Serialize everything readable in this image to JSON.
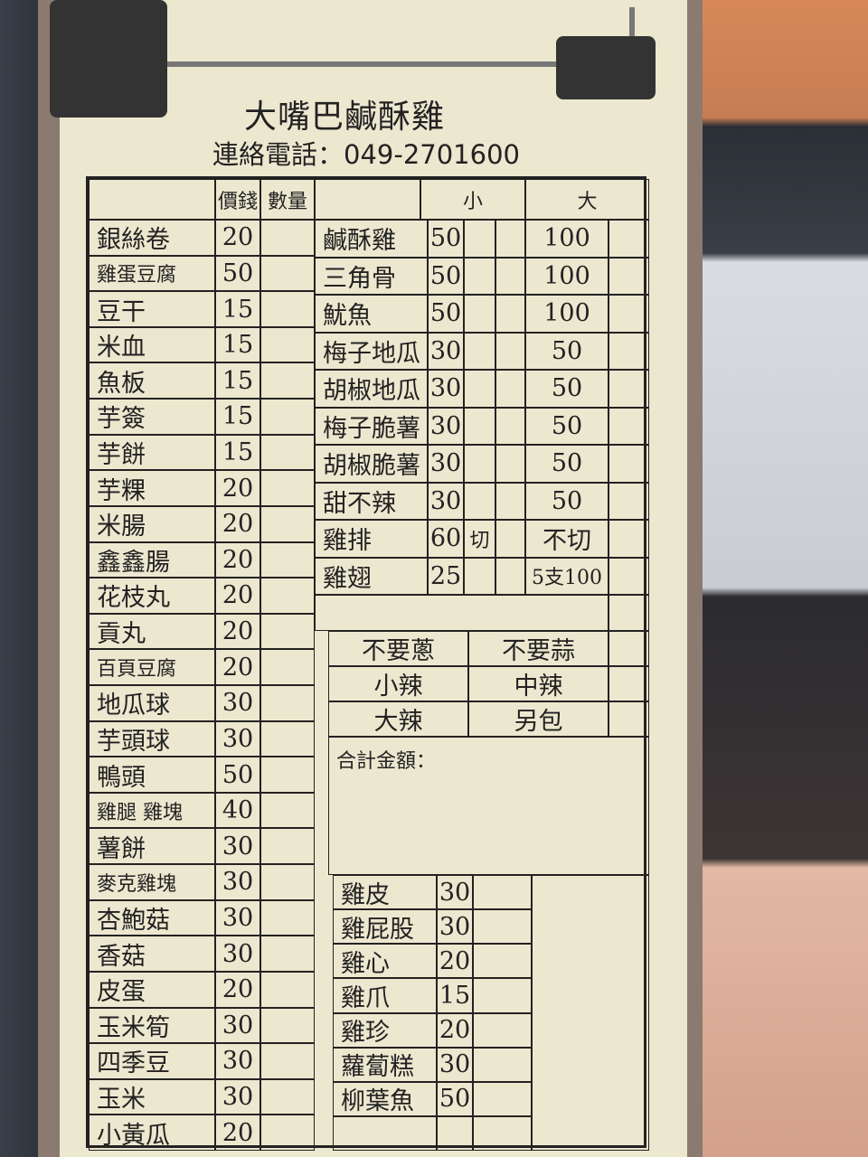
{
  "header": {
    "title": "大嘴巴鹹酥雞",
    "phone": "連絡電話：049-2701600"
  },
  "left_headers": {
    "price": "價錢",
    "qty": "數量"
  },
  "right_headers": {
    "small": "小",
    "large": "大"
  },
  "left_items": [
    {
      "name": "銀絲卷",
      "price": "20"
    },
    {
      "name": "雞蛋豆腐",
      "price": "50"
    },
    {
      "name": "豆干",
      "price": "15"
    },
    {
      "name": "米血",
      "price": "15"
    },
    {
      "name": "魚板",
      "price": "15"
    },
    {
      "name": "芋簽",
      "price": "15"
    },
    {
      "name": "芋餅",
      "price": "15"
    },
    {
      "name": "芋粿",
      "price": "20"
    },
    {
      "name": "米腸",
      "price": "20"
    },
    {
      "name": "鑫鑫腸",
      "price": "20"
    },
    {
      "name": "花枝丸",
      "price": "20"
    },
    {
      "name": "貢丸",
      "price": "20"
    },
    {
      "name": "百頁豆腐",
      "price": "20"
    },
    {
      "name": "地瓜球",
      "price": "30"
    },
    {
      "name": "芋頭球",
      "price": "30"
    },
    {
      "name": "鴨頭",
      "price": "50"
    },
    {
      "name": "雞腿 雞塊",
      "price": "40"
    },
    {
      "name": "薯餅",
      "price": "30"
    },
    {
      "name": "麥克雞塊",
      "price": "30"
    },
    {
      "name": "杏鮑菇",
      "price": "30"
    },
    {
      "name": "香菇",
      "price": "30"
    },
    {
      "name": "皮蛋",
      "price": "20"
    },
    {
      "name": "玉米筍",
      "price": "30"
    },
    {
      "name": "四季豆",
      "price": "30"
    },
    {
      "name": "玉米",
      "price": "30"
    },
    {
      "name": "小黃瓜",
      "price": "20"
    }
  ],
  "sized_items": [
    {
      "name": "鹹酥雞",
      "small": "50",
      "small_note": "",
      "large": "100"
    },
    {
      "name": "三角骨",
      "small": "50",
      "small_note": "",
      "large": "100"
    },
    {
      "name": "魷魚",
      "small": "50",
      "small_note": "",
      "large": "100"
    },
    {
      "name": "梅子地瓜",
      "small": "30",
      "small_note": "",
      "large": "50"
    },
    {
      "name": "胡椒地瓜",
      "small": "30",
      "small_note": "",
      "large": "50"
    },
    {
      "name": "梅子脆薯",
      "small": "30",
      "small_note": "",
      "large": "50"
    },
    {
      "name": "胡椒脆薯",
      "small": "30",
      "small_note": "",
      "large": "50"
    },
    {
      "name": "甜不辣",
      "small": "30",
      "small_note": "",
      "large": "50"
    },
    {
      "name": "雞排",
      "small": "60",
      "small_note": "切",
      "large": "不切"
    },
    {
      "name": "雞翅",
      "small": "25",
      "small_note": "",
      "large": "5支100"
    }
  ],
  "options": [
    [
      "不要蔥",
      "不要蒜"
    ],
    [
      "小辣",
      "中辣"
    ],
    [
      "大辣",
      "另包"
    ]
  ],
  "total_label": "合計金額：",
  "side_items": [
    {
      "name": "雞皮",
      "price": "30"
    },
    {
      "name": "雞屁股",
      "price": "30"
    },
    {
      "name": "雞心",
      "price": "20"
    },
    {
      "name": "雞爪",
      "price": "15"
    },
    {
      "name": "雞珍",
      "price": "20"
    },
    {
      "name": "蘿蔔糕",
      "price": "30"
    },
    {
      "name": "柳葉魚",
      "price": "50"
    },
    {
      "name": "",
      "price": ""
    }
  ]
}
